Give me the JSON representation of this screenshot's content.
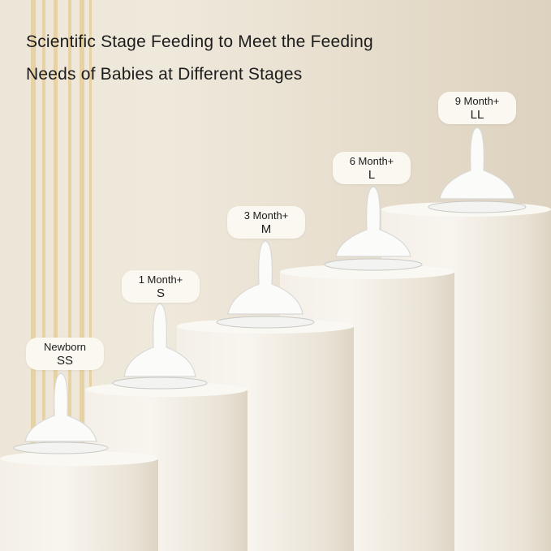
{
  "headline": {
    "line1": "Scientific Stage Feeding to Meet the Feeding",
    "line2": "Needs of Babies at Different Stages"
  },
  "stages": [
    {
      "age": "Newborn",
      "size": "SS"
    },
    {
      "age": "1 Month+",
      "size": "S"
    },
    {
      "age": "3 Month+",
      "size": "M"
    },
    {
      "age": "6 Month+",
      "size": "L"
    },
    {
      "age": "9 Month+",
      "size": "LL"
    }
  ],
  "colors": {
    "background": "#ece4d5",
    "accent_stripes": "#e4c98e",
    "pillars": "#f6f2ea"
  }
}
